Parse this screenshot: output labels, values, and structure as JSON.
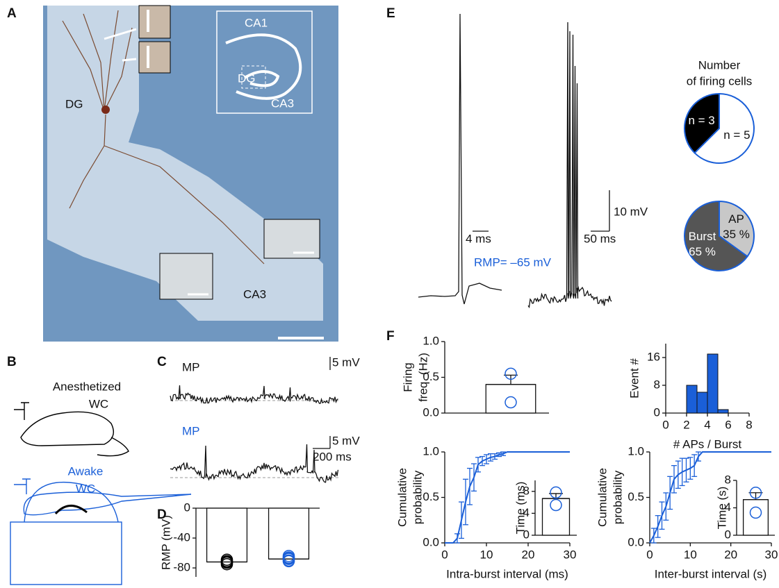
{
  "panel_labels": [
    "A",
    "B",
    "C",
    "D",
    "E",
    "F"
  ],
  "micrograph": {
    "labels": [
      "DG",
      "CA1",
      "DG",
      "CA3",
      "CA3"
    ]
  },
  "schematic": {
    "anesthetized": [
      "Anesthetized",
      "WC"
    ],
    "awake": [
      "Awake",
      "WC"
    ]
  },
  "traces": {
    "anesthetized": {
      "label": "MP",
      "scale_v": "5 mV"
    },
    "awake": {
      "label": "MP",
      "scale_v": "5 mV",
      "scale_t": "200 ms"
    },
    "spikes": {
      "scale_t1": "4 ms",
      "scale_t2": "50 ms",
      "scale_v": "10 mV",
      "rmp": "RMP= –65 mV"
    }
  },
  "chart_data": [
    {
      "type": "bar",
      "ylabel": "RMP (mV)",
      "values": [
        -72,
        -68
      ],
      "colors": [
        "#000000",
        "#1a5fd8"
      ],
      "points": [
        [
          -69,
          -71,
          -72,
          -73,
          -75
        ],
        [
          -64,
          -66,
          -67,
          -68,
          -70,
          -71
        ]
      ],
      "ylim": [
        -92,
        0
      ],
      "yticks": [
        0,
        -40,
        -80
      ]
    },
    {
      "type": "pie",
      "title": [
        "Number",
        "of firing cells"
      ],
      "values": [
        3,
        5
      ],
      "value_labels": [
        "n = 3",
        "n = 5"
      ],
      "colors": [
        "#000000",
        "#ffffff"
      ],
      "edge_color": "#1a5fd8",
      "direction": "counterclockwise"
    },
    {
      "type": "pie",
      "categories": [
        "AP",
        "Burst"
      ],
      "values": [
        35,
        65
      ],
      "value_labels": [
        "35 %",
        "65 %"
      ],
      "colors": [
        "#c8c8c8",
        "#555555"
      ],
      "edge_color": "#1a5fd8",
      "direction": "clockwise"
    },
    {
      "type": "bar",
      "ylabel": [
        "Firing",
        "freq. (Hz)"
      ],
      "values": [
        0.4
      ],
      "errors": [
        0.13
      ],
      "colors": [
        "#1a5fd8"
      ],
      "points": [
        [
          0.55,
          0.15
        ]
      ],
      "ylim": [
        0,
        1
      ],
      "yticks": [
        {
          "value": 0,
          "label": "0.0"
        },
        {
          "value": 0.5,
          "label": "0.5"
        },
        {
          "value": 1,
          "label": "1.0"
        }
      ]
    },
    {
      "type": "histogram",
      "xlabel": "# APs / Burst",
      "ylabel": "Event #",
      "bins": [
        2,
        3,
        4,
        5,
        6
      ],
      "values": [
        8,
        6,
        17,
        1
      ],
      "color": "#1a5fd8",
      "xlim": [
        0,
        8
      ],
      "xticks": [
        0,
        2,
        4,
        6,
        8
      ],
      "ylim": [
        0,
        20
      ],
      "yticks": [
        0,
        8,
        16
      ]
    },
    {
      "type": "line",
      "xlabel": "Intra-burst interval (ms)",
      "ylabel": [
        "Cumulative",
        "probability"
      ],
      "x": [
        0,
        1,
        2,
        3,
        4,
        5,
        6,
        7,
        8,
        9,
        10,
        11,
        12,
        13,
        14,
        15,
        30
      ],
      "values": [
        0,
        0,
        0,
        0.05,
        0.25,
        0.45,
        0.62,
        0.72,
        0.86,
        0.9,
        0.92,
        0.94,
        0.95,
        0.97,
        0.98,
        1,
        1
      ],
      "errors": [
        null,
        null,
        null,
        0.05,
        0.2,
        0.25,
        0.2,
        0.15,
        0.08,
        0.05,
        0.05,
        0.04,
        0.03,
        0.02,
        0.02,
        null,
        null
      ],
      "color": "#1a5fd8",
      "xlim": [
        0,
        30
      ],
      "xticks": [
        0,
        10,
        20,
        30
      ],
      "ylim": [
        0,
        1
      ],
      "yticks": [
        {
          "value": 0,
          "label": "0.0"
        },
        {
          "value": 0.5,
          "label": "0.5"
        },
        {
          "value": 1,
          "label": "1.0"
        }
      ],
      "inset": {
        "type": "bar",
        "ylabel": "Time (ms)",
        "values": [
          6.7
        ],
        "errors": [
          0.9
        ],
        "colors": [
          "#1a5fd8"
        ],
        "points": [
          [
            7.8,
            5.5
          ]
        ],
        "ylim": [
          0,
          10
        ],
        "yticks": [
          0,
          4,
          8
        ]
      }
    },
    {
      "type": "line",
      "xlabel": "Inter-burst interval (s)",
      "ylabel": [
        "Cumulative",
        "probability"
      ],
      "x": [
        0,
        1,
        2,
        3,
        4,
        5,
        6,
        7,
        8,
        9,
        10,
        11,
        12,
        13,
        30
      ],
      "values": [
        0,
        0.08,
        0.18,
        0.3,
        0.4,
        0.55,
        0.7,
        0.75,
        0.78,
        0.8,
        0.82,
        0.85,
        0.95,
        1,
        1
      ],
      "errors": [
        null,
        0.08,
        0.12,
        0.15,
        0.15,
        0.18,
        0.15,
        0.15,
        0.15,
        0.13,
        0.12,
        0.12,
        0.05,
        null,
        null
      ],
      "color": "#1a5fd8",
      "xlim": [
        0,
        30
      ],
      "xticks": [
        0,
        10,
        20,
        30
      ],
      "ylim": [
        0,
        1
      ],
      "yticks": [
        {
          "value": 0,
          "label": "0.0"
        },
        {
          "value": 0.5,
          "label": "0.5"
        },
        {
          "value": 1,
          "label": "1.0"
        }
      ],
      "inset": {
        "type": "bar",
        "ylabel": "Time (s)",
        "values": [
          5.2
        ],
        "errors": [
          1.0
        ],
        "colors": [
          "#1a5fd8"
        ],
        "points": [
          [
            6.2,
            3.3
          ]
        ],
        "ylim": [
          0,
          8
        ],
        "yticks": [
          0,
          4,
          8
        ]
      }
    }
  ]
}
